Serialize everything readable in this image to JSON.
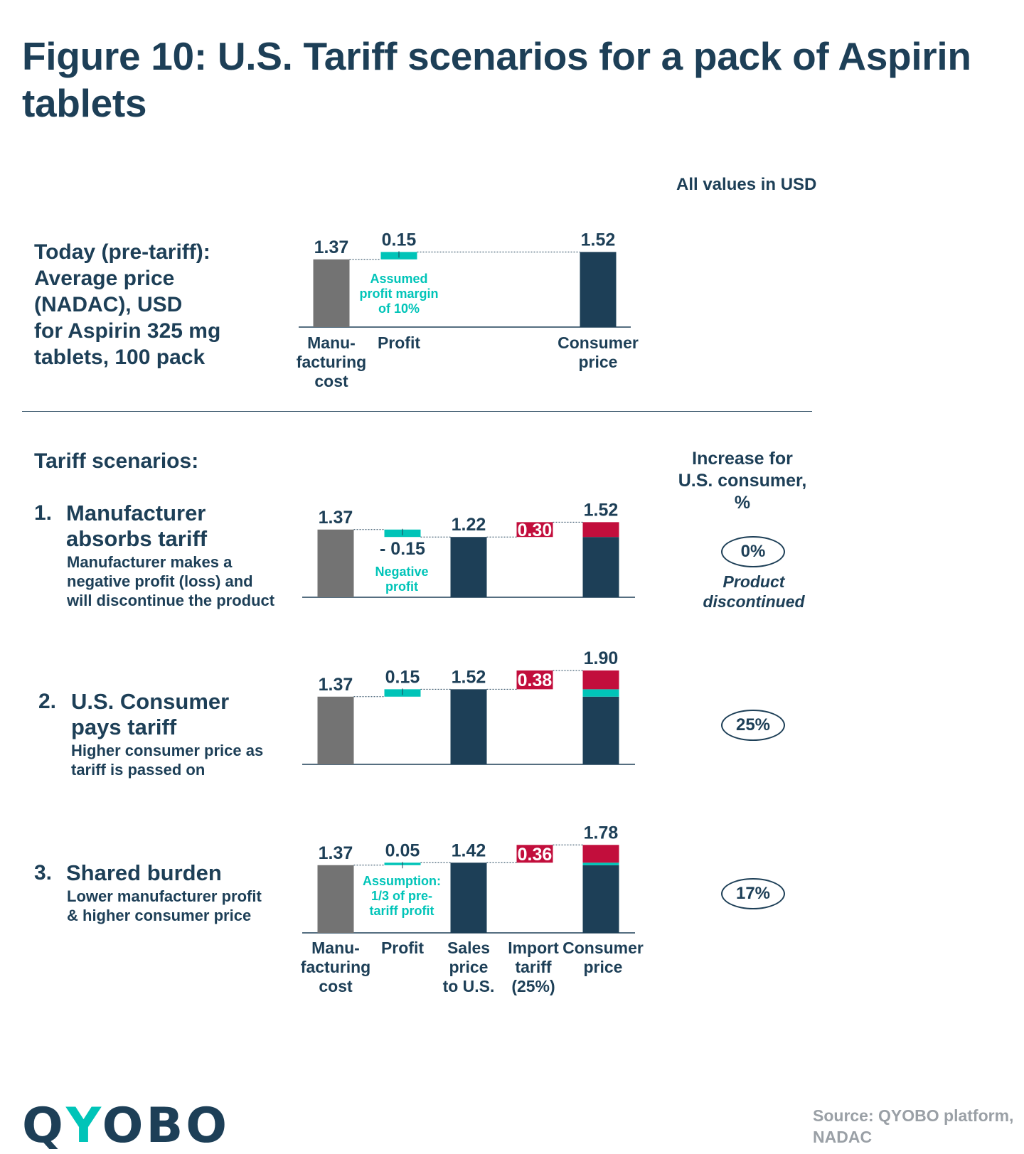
{
  "title": "Figure 10: U.S. Tariff scenarios for a pack of Aspirin tablets",
  "units_note": "All values in USD",
  "today_text": [
    "Today (pre-tariff):",
    "Average price",
    "(NADAC), USD",
    "for Aspirin 325 mg",
    "tablets, 100 pack"
  ],
  "scenarios_heading": "Tariff scenarios:",
  "increase_heading": [
    "Increase for",
    "U.S. consumer,",
    "%"
  ],
  "scenarios": [
    {
      "num": "1.",
      "heading": [
        "Manufacturer",
        "absorbs tariff"
      ],
      "desc": [
        "Manufacturer makes a",
        "negative profit (loss) and",
        "will discontinue the product"
      ],
      "increase": "0%",
      "note": [
        "Product",
        "discontinued"
      ]
    },
    {
      "num": "2.",
      "heading": [
        "U.S. Consumer",
        "pays tariff"
      ],
      "desc": [
        "Higher consumer price as",
        "tariff is passed on"
      ],
      "increase": "25%"
    },
    {
      "num": "3.",
      "heading": [
        "Shared burden"
      ],
      "desc": [
        "Lower manufacturer profit",
        "& higher consumer price"
      ],
      "increase": "17%"
    }
  ],
  "today_xlabels": [
    [
      "Manu-",
      "facturing",
      "cost"
    ],
    [
      "Profit"
    ],
    [
      "Consumer",
      "price"
    ]
  ],
  "scenario_xlabels": [
    [
      "Manu-",
      "facturing",
      "cost"
    ],
    [
      "Profit"
    ],
    [
      "Sales",
      "price",
      "to U.S."
    ],
    [
      "Import",
      "tariff",
      "(25%)"
    ],
    [
      "Consumer",
      "price"
    ]
  ],
  "logo": "QYOBO",
  "source": [
    "Source: QYOBO platform,",
    "NADAC"
  ],
  "colors": {
    "navy": "#1d3f57",
    "gray": "#737373",
    "teal": "#00c4b8",
    "red": "#c20e3c"
  },
  "chart_data": [
    {
      "type": "bar",
      "title": "Today (pre-tariff)",
      "annotation": [
        "Assumed",
        "profit margin",
        "of 10%"
      ],
      "bars": [
        {
          "category": "Manufacturing cost",
          "segments": [
            {
              "from": 0,
              "to": 1.37,
              "kind": "gray"
            }
          ],
          "label": "1.37",
          "label_pos": "above"
        },
        {
          "category": "Profit",
          "segments": [
            {
              "from": 1.37,
              "to": 1.52,
              "kind": "teal"
            }
          ],
          "label": "0.15",
          "label_pos": "above"
        },
        {
          "category": "Consumer price",
          "segments": [
            {
              "from": 0,
              "to": 1.52,
              "kind": "navy"
            }
          ],
          "label": "1.52",
          "label_pos": "above"
        }
      ]
    },
    {
      "type": "bar",
      "title": "Manufacturer absorbs tariff",
      "annotation": [
        "Negative",
        "profit"
      ],
      "bars": [
        {
          "category": "Manufacturing cost",
          "segments": [
            {
              "from": 0,
              "to": 1.37,
              "kind": "gray"
            }
          ],
          "label": "1.37",
          "label_pos": "above"
        },
        {
          "category": "Profit",
          "segments": [
            {
              "from": 1.37,
              "to": 1.22,
              "kind": "teal"
            }
          ],
          "label": "- 0.15",
          "label_pos": "below"
        },
        {
          "category": "Sales price to U.S.",
          "segments": [
            {
              "from": 0,
              "to": 1.22,
              "kind": "navy"
            }
          ],
          "label": "1.22",
          "label_pos": "above"
        },
        {
          "category": "Import tariff (25%)",
          "segments": [
            {
              "from": 1.22,
              "to": 1.52,
              "kind": "red"
            }
          ],
          "label": "0.30",
          "label_pos": "inside"
        },
        {
          "category": "Consumer price",
          "segments": [
            {
              "from": 0,
              "to": 1.22,
              "kind": "navy"
            },
            {
              "from": 1.22,
              "to": 1.52,
              "kind": "red"
            }
          ],
          "label": "1.52",
          "label_pos": "above"
        }
      ]
    },
    {
      "type": "bar",
      "title": "U.S. Consumer pays tariff",
      "annotation": [],
      "bars": [
        {
          "category": "Manufacturing cost",
          "segments": [
            {
              "from": 0,
              "to": 1.37,
              "kind": "gray"
            }
          ],
          "label": "1.37",
          "label_pos": "above"
        },
        {
          "category": "Profit",
          "segments": [
            {
              "from": 1.37,
              "to": 1.52,
              "kind": "teal"
            }
          ],
          "label": "0.15",
          "label_pos": "above"
        },
        {
          "category": "Sales price to U.S.",
          "segments": [
            {
              "from": 0,
              "to": 1.52,
              "kind": "navy"
            }
          ],
          "label": "1.52",
          "label_pos": "above"
        },
        {
          "category": "Import tariff (25%)",
          "segments": [
            {
              "from": 1.52,
              "to": 1.9,
              "kind": "red"
            }
          ],
          "label": "0.38",
          "label_pos": "inside"
        },
        {
          "category": "Consumer price",
          "segments": [
            {
              "from": 0,
              "to": 1.37,
              "kind": "navy"
            },
            {
              "from": 1.37,
              "to": 1.52,
              "kind": "teal"
            },
            {
              "from": 1.52,
              "to": 1.9,
              "kind": "red"
            }
          ],
          "label": "1.90",
          "label_pos": "above"
        }
      ]
    },
    {
      "type": "bar",
      "title": "Shared burden",
      "annotation": [
        "Assumption:",
        "1/3 of pre-",
        "tariff profit"
      ],
      "bars": [
        {
          "category": "Manufacturing cost",
          "segments": [
            {
              "from": 0,
              "to": 1.37,
              "kind": "gray"
            }
          ],
          "label": "1.37",
          "label_pos": "above"
        },
        {
          "category": "Profit",
          "segments": [
            {
              "from": 1.37,
              "to": 1.42,
              "kind": "teal"
            }
          ],
          "label": "0.05",
          "label_pos": "above"
        },
        {
          "category": "Sales price to U.S.",
          "segments": [
            {
              "from": 0,
              "to": 1.42,
              "kind": "navy"
            }
          ],
          "label": "1.42",
          "label_pos": "above"
        },
        {
          "category": "Import tariff (25%)",
          "segments": [
            {
              "from": 1.42,
              "to": 1.78,
              "kind": "red"
            }
          ],
          "label": "0.36",
          "label_pos": "inside"
        },
        {
          "category": "Consumer price",
          "segments": [
            {
              "from": 0,
              "to": 1.37,
              "kind": "navy"
            },
            {
              "from": 1.37,
              "to": 1.42,
              "kind": "teal"
            },
            {
              "from": 1.42,
              "to": 1.78,
              "kind": "red"
            }
          ],
          "label": "1.78",
          "label_pos": "above"
        }
      ]
    }
  ]
}
